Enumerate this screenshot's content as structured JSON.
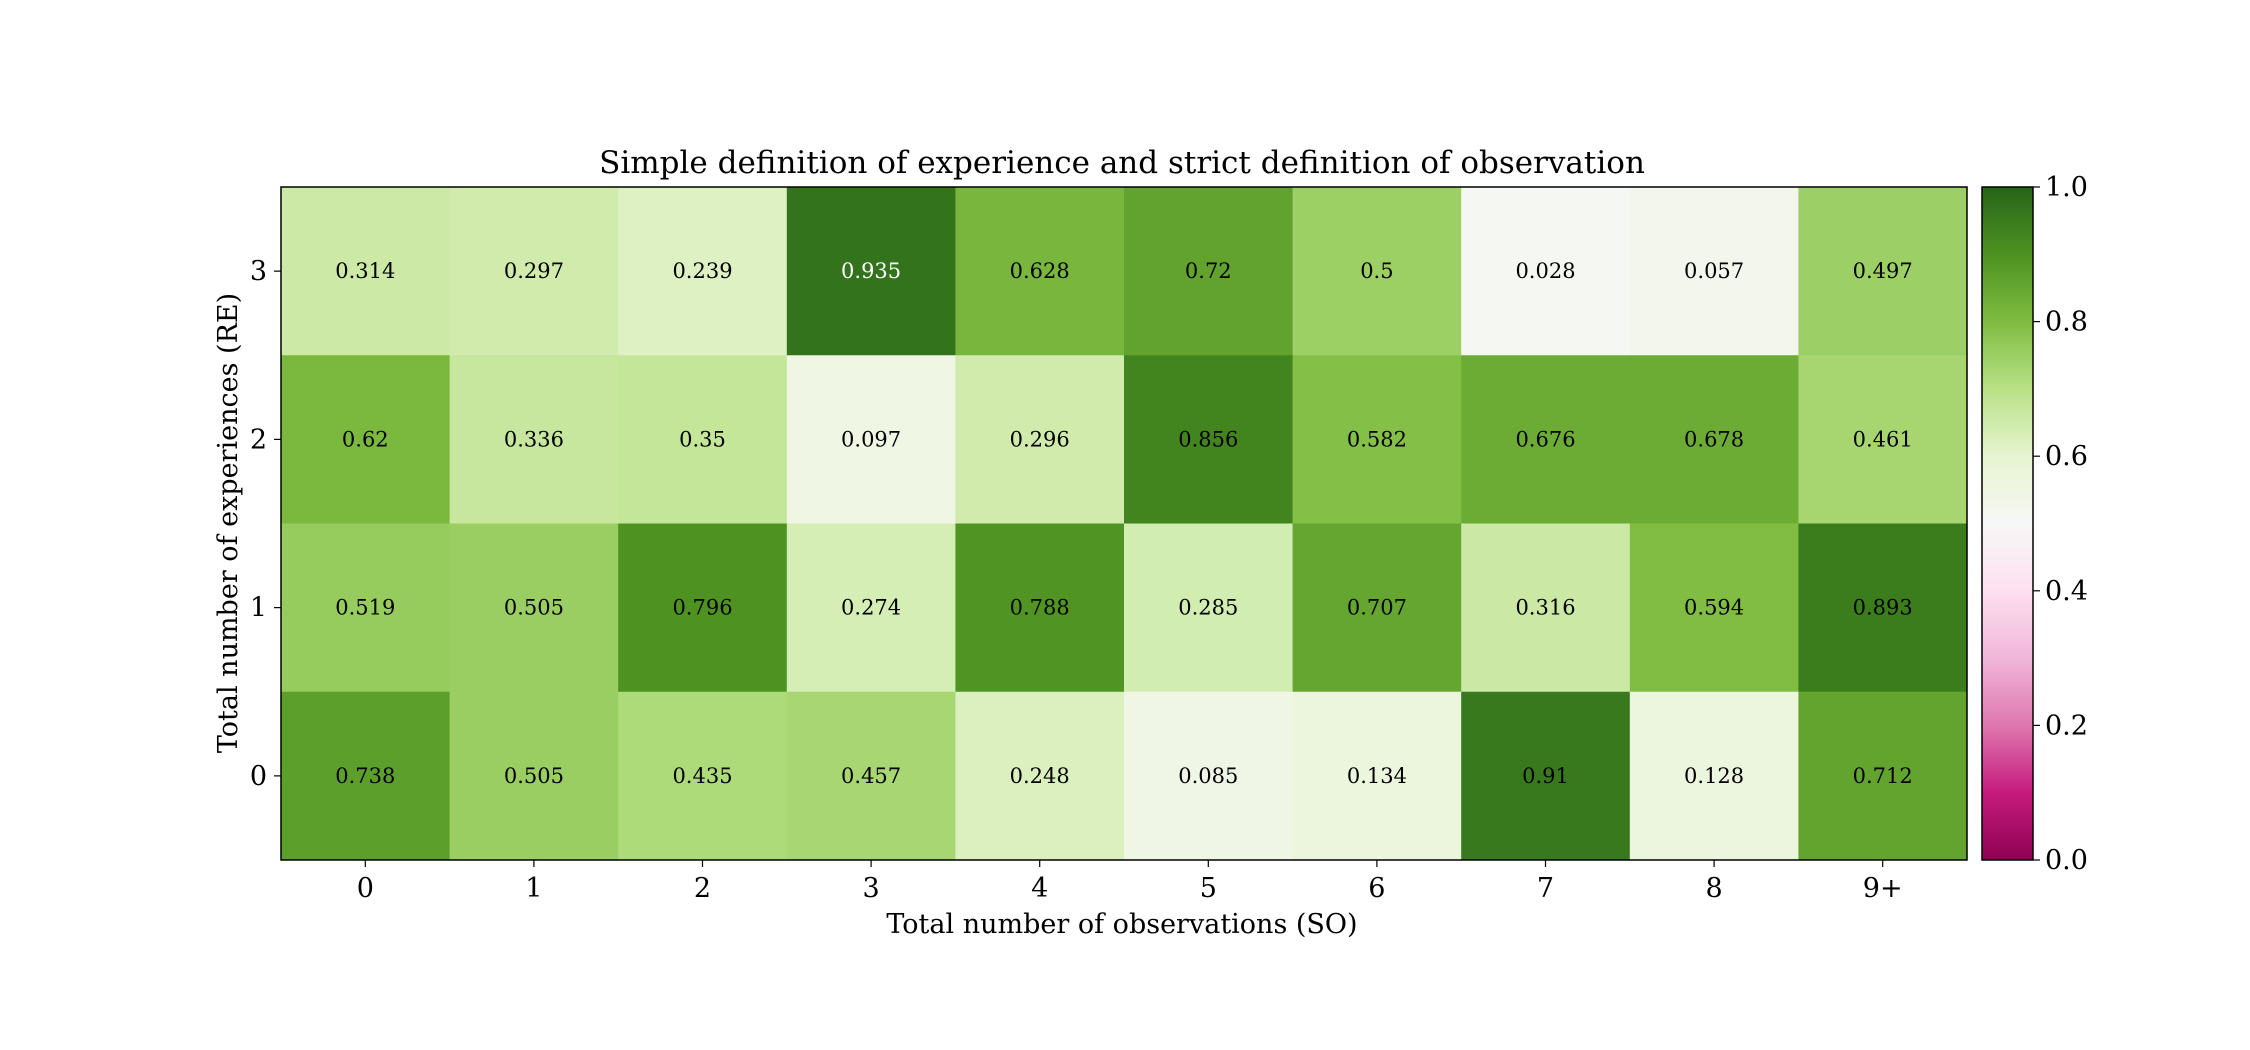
{
  "chart_data": {
    "type": "heatmap",
    "title": "Simple definition of experience and strict definition of observation",
    "xlabel": "Total number of observations (SO)",
    "ylabel": "Total number of experiences (RE)",
    "x_categories": [
      "0",
      "1",
      "2",
      "3",
      "4",
      "5",
      "6",
      "7",
      "8",
      "9+"
    ],
    "y_categories": [
      "3",
      "2",
      "1",
      "0"
    ],
    "values": [
      [
        0.314,
        0.297,
        0.239,
        0.935,
        0.628,
        0.72,
        0.5,
        0.028,
        0.057,
        0.497
      ],
      [
        0.62,
        0.336,
        0.35,
        0.097,
        0.296,
        0.856,
        0.582,
        0.676,
        0.678,
        0.461
      ],
      [
        0.519,
        0.505,
        0.796,
        0.274,
        0.788,
        0.285,
        0.707,
        0.316,
        0.594,
        0.893
      ],
      [
        0.738,
        0.505,
        0.435,
        0.457,
        0.248,
        0.085,
        0.134,
        0.91,
        0.128,
        0.712
      ]
    ],
    "colormap": "PiYG",
    "vmin": 0.0,
    "vmax": 1.0,
    "colorbar": {
      "ticks": [
        0.0,
        0.2,
        0.4,
        0.6,
        0.8,
        1.0
      ],
      "tick_labels": [
        "0.0",
        "0.2",
        "0.4",
        "0.6",
        "0.8",
        "1.0"
      ]
    },
    "grid": false,
    "legend": "colorbar-right"
  }
}
